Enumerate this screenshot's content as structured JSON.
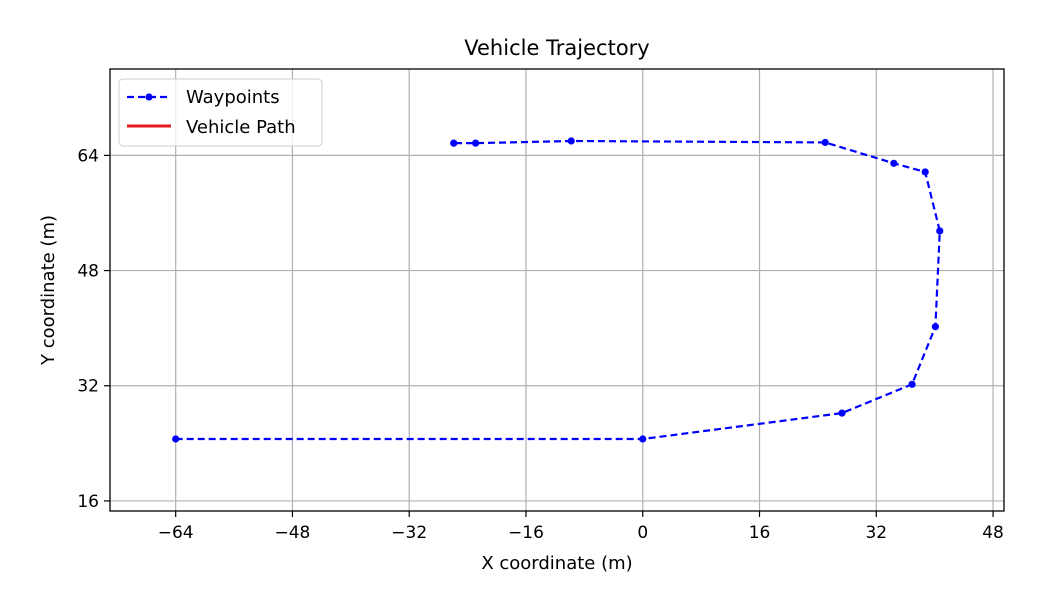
{
  "chart_data": {
    "type": "line",
    "title": "Vehicle Trajectory",
    "xlabel": "X coordinate (m)",
    "ylabel": "Y coordinate (m)",
    "xlim": [
      -73,
      49.5
    ],
    "ylim": [
      14.6,
      76
    ],
    "xticks": [
      -64,
      -48,
      -32,
      -16,
      0,
      16,
      32,
      48
    ],
    "yticks": [
      16,
      32,
      48,
      64
    ],
    "grid": true,
    "legend_position": "top-left",
    "series": [
      {
        "name": "Waypoints",
        "color": "#0000ff",
        "style": "dashed-with-markers",
        "x": [
          -64,
          0,
          27.3,
          36.9,
          40.1,
          40.7,
          38.7,
          34.4,
          25,
          -9.8,
          -22.9,
          -25.9
        ],
        "y": [
          24.6,
          24.6,
          28.2,
          32.2,
          40.2,
          53.5,
          61.7,
          62.9,
          65.8,
          66,
          65.7,
          65.7
        ]
      },
      {
        "name": "Vehicle Path",
        "color": "#e41a1c",
        "style": "solid",
        "x": [],
        "y": []
      }
    ]
  }
}
